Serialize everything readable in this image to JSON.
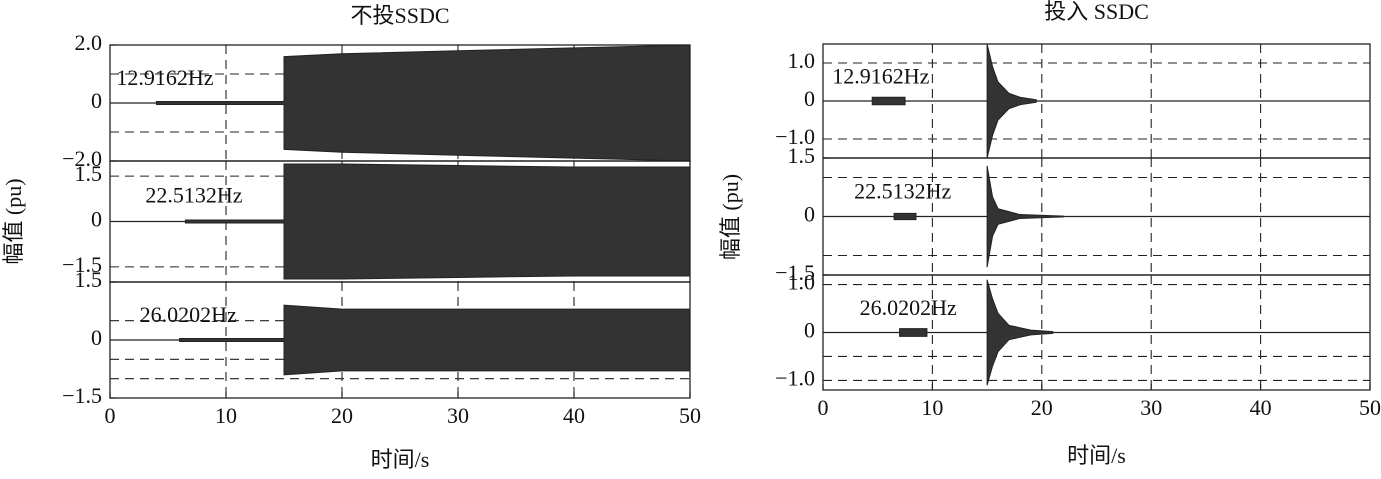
{
  "chart_data": [
    {
      "type": "area",
      "title": "不投SSDC",
      "xlabel": "时间/s",
      "ylabel": "幅值 (pu)",
      "xlim": [
        0,
        50
      ],
      "xticks": [
        0,
        10,
        20,
        30,
        40,
        50
      ],
      "subplots": [
        {
          "annotation": "12.9162Hz",
          "ylim": [
            -2,
            2
          ],
          "yticks": [
            {
              "value": 2,
              "label": "2.0"
            },
            0,
            {
              "value": -2,
              "label": "−2.0"
            }
          ],
          "minor_grid": [
            -1,
            1
          ],
          "x": [
            4,
            15,
            15,
            20,
            30,
            40,
            50
          ],
          "values": [
            0.05,
            0.05,
            1.6,
            1.7,
            1.8,
            1.9,
            2.0
          ]
        },
        {
          "annotation": "22.5132Hz",
          "ylim": [
            -2,
            2
          ],
          "yticks": [
            {
              "value": 1.5,
              "label": "1.5"
            },
            0,
            {
              "value": -1.5,
              "label": "−1.5"
            }
          ],
          "minor_grid": [],
          "x": [
            6.5,
            15,
            15,
            20,
            30,
            40,
            50
          ],
          "values": [
            0.05,
            0.05,
            1.9,
            1.9,
            1.85,
            1.8,
            1.8
          ]
        },
        {
          "annotation": "26.0202Hz",
          "ylim": [
            -1.5,
            1.5
          ],
          "yticks": [
            {
              "value": 1.5,
              "label": "1.5"
            },
            0,
            {
              "value": -1.5,
              "label": "−1.5"
            }
          ],
          "minor_grid": [
            -1,
            -0.5,
            0.5
          ],
          "x": [
            6,
            15,
            15,
            20,
            30,
            40,
            50
          ],
          "values": [
            0.04,
            0.04,
            0.9,
            0.8,
            0.8,
            0.8,
            0.8
          ]
        }
      ]
    },
    {
      "type": "area",
      "title": "投入 SSDC",
      "xlabel": "时间/s",
      "ylabel": "幅值 (pu)",
      "xlim": [
        0,
        50
      ],
      "xticks": [
        0,
        10,
        20,
        30,
        40,
        50
      ],
      "subplots": [
        {
          "annotation": "12.9162Hz",
          "ylim": [
            -1.5,
            1.5
          ],
          "yticks": [
            {
              "value": 1,
              "label": "1.0"
            },
            0,
            {
              "value": -1,
              "label": "−1.0"
            }
          ],
          "minor_grid": [],
          "x": [
            4.5,
            7.5,
            null,
            15,
            15.5,
            16,
            17,
            18,
            19.5
          ],
          "values": [
            0.1,
            0.1,
            null,
            1.5,
            0.9,
            0.5,
            0.2,
            0.1,
            0.03
          ]
        },
        {
          "annotation": "22.5132Hz",
          "ylim": [
            -1.5,
            1.5
          ],
          "yticks": [
            {
              "value": 1.5,
              "label": "1.5"
            },
            0,
            {
              "value": -1.5,
              "label": "−1.5"
            }
          ],
          "minor_grid": [
            -1,
            1
          ],
          "x": [
            6.5,
            8.5,
            null,
            15,
            15.5,
            16,
            18,
            22
          ],
          "values": [
            0.08,
            0.08,
            null,
            1.3,
            0.5,
            0.2,
            0.05,
            0.01
          ]
        },
        {
          "annotation": "26.0202Hz",
          "ylim": [
            -1.2,
            1.2
          ],
          "yticks": [
            {
              "value": 1,
              "label": "1.0"
            },
            0,
            {
              "value": -1,
              "label": "−1.0"
            }
          ],
          "minor_grid": [
            -0.5
          ],
          "x": [
            7,
            9.5,
            null,
            15,
            15.5,
            16,
            17,
            19,
            21
          ],
          "values": [
            0.08,
            0.08,
            null,
            1.1,
            0.7,
            0.4,
            0.15,
            0.05,
            0.02
          ]
        }
      ]
    }
  ]
}
